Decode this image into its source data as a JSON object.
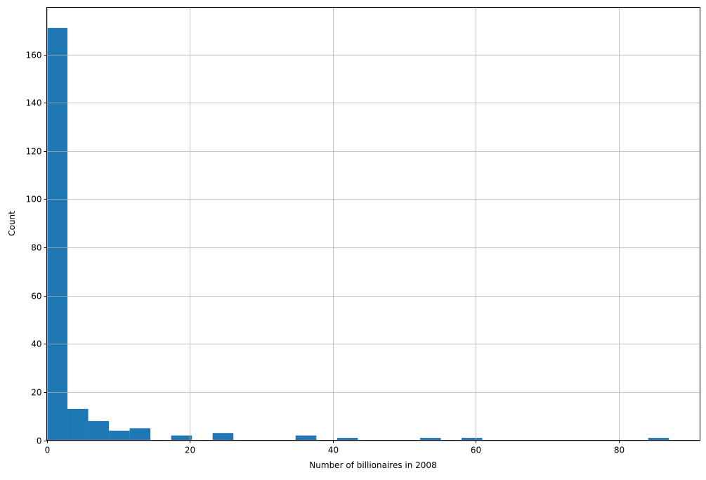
{
  "chart_data": {
    "type": "bar",
    "subtype": "histogram",
    "title": "",
    "xlabel": "Number of billionaires in 2008",
    "ylabel": "Count",
    "bin_start": 0,
    "bin_width": 2.9,
    "counts": [
      171,
      13,
      8,
      4,
      5,
      0,
      2,
      0,
      3,
      0,
      0,
      0,
      2,
      0,
      1,
      0,
      0,
      0,
      1,
      0,
      1,
      0,
      0,
      0,
      0,
      0,
      0,
      0,
      0,
      1
    ],
    "xlim": [
      0,
      91.35
    ],
    "ylim": [
      0,
      179.55
    ],
    "xticks": [
      0,
      20,
      40,
      60,
      80
    ],
    "yticks": [
      0,
      20,
      40,
      60,
      80,
      100,
      120,
      140,
      160
    ],
    "grid": true,
    "bar_color": "#1f77b4",
    "grid_color": "#b0b0b0"
  }
}
